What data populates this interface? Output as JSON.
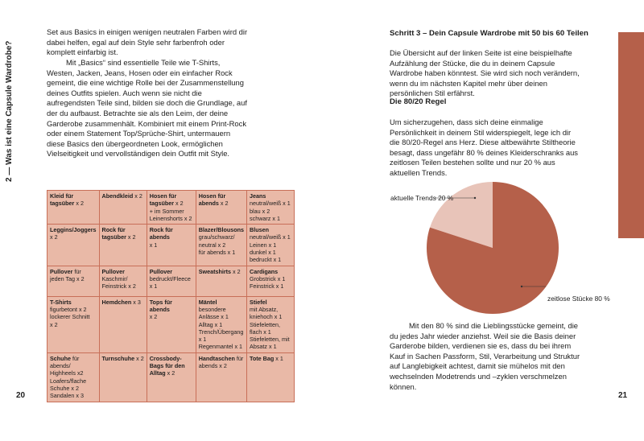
{
  "left_page": {
    "side_title": "2 — Was ist eine Capsule Wardrobe?",
    "para1": "Set aus Basics in einigen wenigen neutralen Farben wird dir dabei helfen, egal auf dein Style sehr farbenfroh oder komplett einfarbig ist.",
    "para2": "Mit „Basics“ sind essentielle Teile wie T-Shirts, Westen, Jacken, Jeans, Hosen oder ein einfacher Rock gemeint, die eine wichtige Rolle bei der Zusammenstellung deines Outfits spielen. Auch wenn sie nicht die aufregendsten Teile sind, bilden sie doch die Grundlage, auf der du aufbaust. Betrachte sie als den Leim, der deine Garderobe zusammenhält. Kombiniert mit einem Print-Rock oder einem Statement Top/Sprüche-Shirt, untermauern diese Basics den übergeordneten Look, ermöglichen Vielseitigkeit und vervollständigen dein Outfit mit Style.",
    "page_number": "20",
    "table": [
      [
        {
          "b": "Kleid für tagsüber",
          "t": " x 2"
        },
        {
          "b": "Abendkleid",
          "t": " x 2"
        },
        {
          "b": "Hosen für tagsüber",
          "t": " x 2\n+ im Sommer Leinenshorts x 2"
        },
        {
          "b": "Hosen für abends",
          "t": " x 2"
        },
        {
          "b": "Jeans",
          "t": "\nneutral/weiß x 1\nblau x 2\nschwarz x 1"
        }
      ],
      [
        {
          "b": "Leggins/Joggers",
          "t": "\nx 2"
        },
        {
          "b": "Rock für tagsüber",
          "t": " x 2"
        },
        {
          "b": "Rock für abends",
          "t": "\nx 1"
        },
        {
          "b": "Blazer/Blousons",
          "t": "\ngrau/schwarz/\nneutral x 2\nfür abends x 1"
        },
        {
          "b": "Blusen",
          "t": "\nneutral/weiß x 1\nLeinen x 1\ndunkel x 1\nbedruckt x 1"
        }
      ],
      [
        {
          "b": "Pullover",
          "t": " für jeden Tag x 2"
        },
        {
          "b": "Pullover",
          "t": "\nKaschmir/\nFeinstrick x 2"
        },
        {
          "b": "Pullover",
          "t": "\nbedruckt/Fleece\nx 1"
        },
        {
          "b": "Sweatshirts",
          "t": " x 2"
        },
        {
          "b": "Cardigans",
          "t": "\nGrobstrick x 1\nFeinstrick x 1"
        }
      ],
      [
        {
          "b": "T-Shirts",
          "t": "\nfigurbetont x 2\nlockerer Schnitt\nx 2"
        },
        {
          "b": "Hemdchen",
          "t": " x 3"
        },
        {
          "b": "Tops für abends",
          "t": "\nx 2"
        },
        {
          "b": "Mäntel",
          "t": "\nbesondere\nAnlässe x 1\nAlltag x 1\nTrench/Übergang\nx 1\nRegenmantel x 1"
        },
        {
          "b": "Stiefel",
          "t": "\nmit Absatz,\nkniehoch x 1\nStiefeletten,\nflach x 1\nStiefeletten, mit\nAbsatz x 1"
        }
      ],
      [
        {
          "b": "Schuhe",
          "t": " für\nabends/\nHighheels x2\nLoafers/flache\nSchuhe x 2\nSandalen x 3"
        },
        {
          "b": "Turnschuhe",
          "t": " x 2"
        },
        {
          "b": "Crossbody-Bags für den Alltag",
          "t": " x 2"
        },
        {
          "b": "Handtaschen",
          "t": " für\nabends x 2"
        },
        {
          "b": "Tote Bag",
          "t": " x 1"
        }
      ]
    ]
  },
  "right_page": {
    "heading": "Schritt 3 – Dein Capsule Wardrobe mit 50 bis 60 Teilen",
    "para1": "Die Übersicht auf der linken Seite ist eine beispielhafte Aufzählung der Stücke, die du in deinem Capsule Wardrobe haben könntest. Sie wird sich noch verändern, wenn du im nächsten Kapitel mehr über deinen persönlichen Stil erfährst.",
    "subheading": "Die 80/20 Regel",
    "para2": "Um sicherzugehen, dass sich deine einmalige Persönlichkeit in deinem Stil widerspiegelt, lege ich dir die 80/20-Regel ans Herz. Diese altbewährte Stiltheorie besagt, dass ungefähr 80 % deines Kleiderschranks aus zeitlosen Teilen bestehen sollte und nur 20 % aus aktuellen Trends.",
    "para3": "Mit den 80 % sind die Lieblingsstücke gemeint, die du jedes Jahr wieder anziehst. Weil sie die Basis deiner Garderobe bilden, verdienen sie es, dass du bei ihrem Kauf in Sachen Passform, Stil, Verarbeitung und Struktur auf Langlebigkeit achtest, damit sie mühelos mit den wechselnden Modetrends und –zyklen verschmelzen können.",
    "page_number": "21"
  },
  "chart_data": {
    "type": "pie",
    "slices": [
      {
        "label": "aktuelle Trends 20 %",
        "value": 20,
        "color": "#e8c4b9"
      },
      {
        "label": "zeitlose Stücke 80 %",
        "value": 80,
        "color": "#b5604a"
      }
    ]
  },
  "colors": {
    "accent": "#b5604a",
    "table_bg": "#e9b9a7",
    "table_border": "#c86f58"
  }
}
